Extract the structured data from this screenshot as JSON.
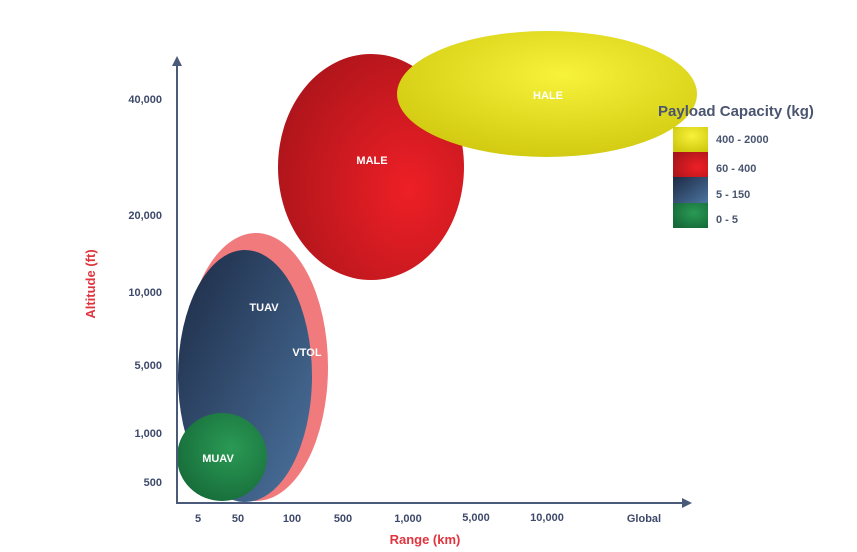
{
  "chart_data": {
    "type": "bubble-diagram",
    "xlabel": "Range (km)",
    "ylabel": "Altitude (ft)",
    "x_ticks": [
      "5",
      "50",
      "100",
      "500",
      "1,000",
      "5,000",
      "10,000",
      "Global"
    ],
    "y_ticks": [
      "40,000",
      "20,000",
      "10,000",
      "5,000",
      "1,000",
      "500"
    ],
    "categories": [
      {
        "name": "HALE",
        "payload": "400 - 2000",
        "color": "#e6e21a"
      },
      {
        "name": "MALE",
        "payload": "60 - 400",
        "color": "#d81e24"
      },
      {
        "name": "VTOL",
        "payload": "",
        "color": "#f07a7c"
      },
      {
        "name": "TUAV",
        "payload": "5 - 150",
        "color": "#3b5878"
      },
      {
        "name": "MUAV",
        "payload": "0 - 5",
        "color": "#22864a"
      }
    ],
    "legend": {
      "title": "Payload Capacity (kg)",
      "placement": "right",
      "items": [
        {
          "label": "400 - 2000",
          "color": "#e6e21a"
        },
        {
          "label": "60 - 400",
          "color": "#d81e24"
        },
        {
          "label": "5 - 150",
          "color": "#3b5878"
        },
        {
          "label": "0 - 5",
          "color": "#22864a"
        }
      ]
    }
  }
}
